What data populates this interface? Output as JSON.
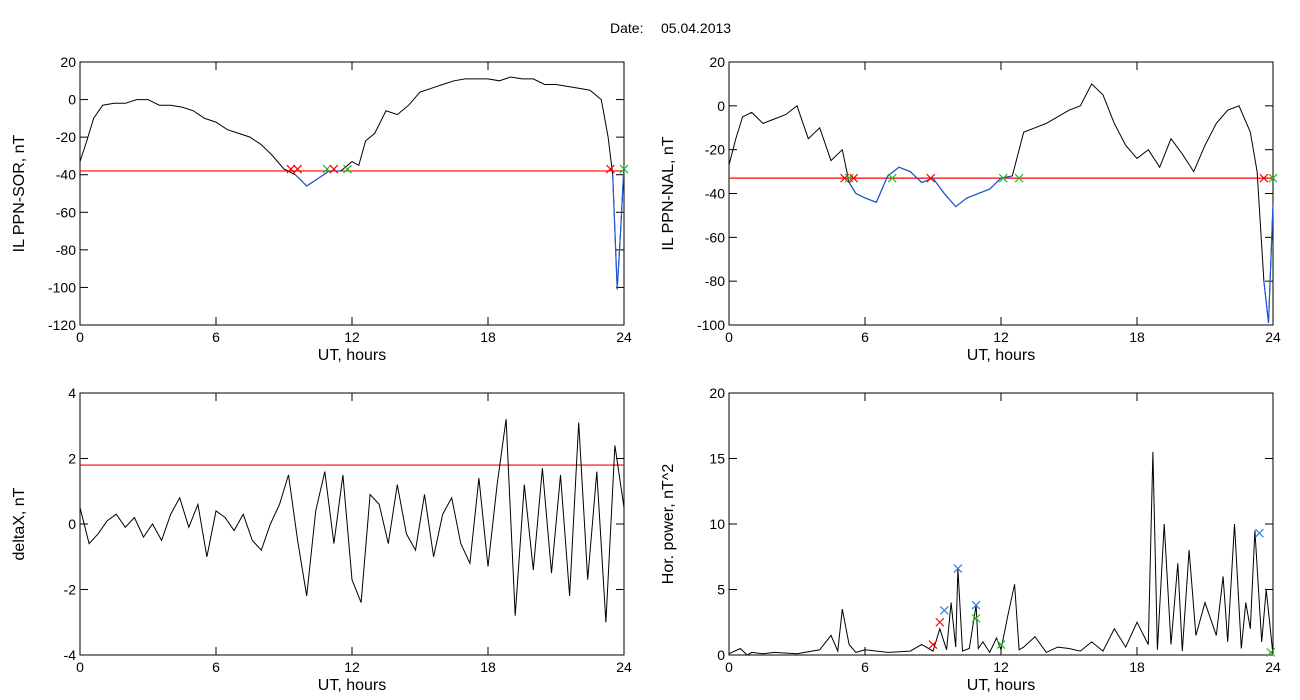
{
  "header": {
    "date_label": "Date:",
    "date_value": "05.04.2013"
  },
  "colors": {
    "threshold": "#ff0000",
    "event": "#1f5bd8",
    "curve": "#000000",
    "start_marker": "#ff0000",
    "end_marker": "#22bb22",
    "peak_marker": "#3a7bd5"
  },
  "chart_data": [
    {
      "type": "line",
      "title": "",
      "xlabel": "UT, hours",
      "ylabel": "IL PPN-SOR, nT",
      "xlim": [
        0,
        24
      ],
      "ylim": [
        -120,
        20
      ],
      "xticks": [
        "0",
        "6",
        "12",
        "18",
        "24"
      ],
      "yticks": [
        "20",
        "0",
        "-20",
        "-40",
        "-60",
        "-80",
        "-100",
        "-120"
      ],
      "threshold": -38,
      "series": [
        {
          "values_x": [
            0,
            0.3,
            0.6,
            1,
            1.5,
            2,
            2.5,
            3,
            3.5,
            4,
            4.5,
            5,
            5.5,
            6,
            6.5,
            7,
            7.5,
            8,
            8.5,
            9,
            9.5,
            10,
            10.5,
            11,
            11.5,
            12,
            12.3,
            12.6,
            13,
            13.5,
            14,
            14.5,
            15,
            15.5,
            16,
            16.5,
            17,
            17.5,
            18,
            18.5,
            19,
            19.5,
            20,
            20.5,
            21,
            21.5,
            22,
            22.5,
            23,
            23.3,
            23.5,
            23.7,
            23.85,
            24
          ],
          "values_y": [
            -33,
            -22,
            -10,
            -3,
            -2,
            -2,
            0,
            0,
            -3,
            -3,
            -4,
            -6,
            -10,
            -12,
            -16,
            -18,
            -20,
            -24,
            -30,
            -37,
            -40,
            -46,
            -42,
            -38,
            -38,
            -33,
            -35,
            -22,
            -18,
            -6,
            -8,
            -3,
            4,
            6,
            8,
            10,
            11,
            11,
            11,
            10,
            12,
            11,
            11,
            8,
            8,
            7,
            6,
            5,
            0,
            -20,
            -40,
            -101,
            -70,
            -35
          ]
        }
      ],
      "markers": [
        {
          "x": 9.3,
          "y": -37,
          "kind": "start"
        },
        {
          "x": 9.6,
          "y": -37,
          "kind": "start"
        },
        {
          "x": 10.9,
          "y": -37,
          "kind": "end"
        },
        {
          "x": 11.2,
          "y": -37,
          "kind": "start"
        },
        {
          "x": 11.8,
          "y": -37,
          "kind": "end"
        },
        {
          "x": 23.4,
          "y": -37,
          "kind": "start"
        },
        {
          "x": 24,
          "y": -37,
          "kind": "end"
        }
      ],
      "event_spans": [
        [
          9.3,
          11.8
        ],
        [
          23.4,
          24
        ]
      ]
    },
    {
      "type": "line",
      "title": "",
      "xlabel": "UT, hours",
      "ylabel": "IL PPN-NAL, nT",
      "xlim": [
        0,
        24
      ],
      "ylim": [
        -100,
        20
      ],
      "xticks": [
        "0",
        "6",
        "12",
        "18",
        "24"
      ],
      "yticks": [
        "20",
        "0",
        "-20",
        "-40",
        "-60",
        "-80",
        "-100"
      ],
      "threshold": -33,
      "series": [
        {
          "values_x": [
            0,
            0.3,
            0.6,
            1,
            1.5,
            2,
            2.5,
            3,
            3.5,
            4,
            4.5,
            5,
            5.3,
            5.6,
            6,
            6.5,
            7,
            7.5,
            8,
            8.5,
            9,
            9.5,
            10,
            10.5,
            11,
            11.5,
            12,
            12.5,
            13,
            13.5,
            14,
            14.5,
            15,
            15.5,
            16,
            16.5,
            17,
            17.5,
            18,
            18.5,
            19,
            19.5,
            20,
            20.5,
            21,
            21.5,
            22,
            22.5,
            23,
            23.3,
            23.6,
            23.8,
            24
          ],
          "values_y": [
            -27,
            -15,
            -5,
            -3,
            -8,
            -6,
            -4,
            0,
            -15,
            -10,
            -25,
            -20,
            -35,
            -40,
            -42,
            -44,
            -32,
            -28,
            -30,
            -35,
            -33,
            -40,
            -46,
            -42,
            -40,
            -38,
            -33,
            -32,
            -12,
            -10,
            -8,
            -5,
            -2,
            0,
            10,
            5,
            -8,
            -18,
            -24,
            -20,
            -28,
            -15,
            -22,
            -30,
            -18,
            -8,
            -2,
            0,
            -12,
            -30,
            -80,
            -99,
            -45
          ]
        }
      ],
      "markers": [
        {
          "x": 5.1,
          "y": -33,
          "kind": "start"
        },
        {
          "x": 5.3,
          "y": -33,
          "kind": "end"
        },
        {
          "x": 5.5,
          "y": -33,
          "kind": "start"
        },
        {
          "x": 7.2,
          "y": -33,
          "kind": "end"
        },
        {
          "x": 8.9,
          "y": -33,
          "kind": "start"
        },
        {
          "x": 12.1,
          "y": -33,
          "kind": "end"
        },
        {
          "x": 12.8,
          "y": -33,
          "kind": "end"
        },
        {
          "x": 23.6,
          "y": -33,
          "kind": "start"
        },
        {
          "x": 24,
          "y": -33,
          "kind": "end"
        }
      ],
      "event_spans": [
        [
          5.1,
          12.8
        ],
        [
          23.6,
          24
        ]
      ]
    },
    {
      "type": "line",
      "title": "",
      "xlabel": "UT, hours",
      "ylabel": "deltaX, nT",
      "xlim": [
        0,
        24
      ],
      "ylim": [
        -4,
        4
      ],
      "xticks": [
        "0",
        "6",
        "12",
        "18",
        "24"
      ],
      "yticks": [
        "4",
        "2",
        "0",
        "-2",
        "-4"
      ],
      "threshold": 1.8,
      "series": [
        {
          "values_x": [
            0,
            0.4,
            0.8,
            1.2,
            1.6,
            2,
            2.4,
            2.8,
            3.2,
            3.6,
            4,
            4.4,
            4.8,
            5.2,
            5.6,
            6,
            6.4,
            6.8,
            7.2,
            7.6,
            8,
            8.4,
            8.8,
            9.2,
            9.6,
            10,
            10.4,
            10.8,
            11.2,
            11.6,
            12,
            12.4,
            12.8,
            13.2,
            13.6,
            14,
            14.4,
            14.8,
            15.2,
            15.6,
            16,
            16.4,
            16.8,
            17.2,
            17.6,
            18,
            18.4,
            18.8,
            19.2,
            19.6,
            20,
            20.4,
            20.8,
            21.2,
            21.6,
            22,
            22.4,
            22.8,
            23.2,
            23.6,
            24
          ],
          "values_y": [
            0.5,
            -0.6,
            -0.3,
            0.1,
            0.3,
            -0.1,
            0.2,
            -0.4,
            0,
            -0.5,
            0.3,
            0.8,
            -0.1,
            0.6,
            -1,
            0.4,
            0.2,
            -0.2,
            0.3,
            -0.5,
            -0.8,
            0,
            0.6,
            1.5,
            -0.5,
            -2.2,
            0.4,
            1.6,
            -0.6,
            1.5,
            -1.7,
            -2.4,
            0.9,
            0.6,
            -0.6,
            1.2,
            -0.3,
            -0.8,
            0.9,
            -1,
            0.3,
            0.8,
            -0.6,
            -1.2,
            1.4,
            -1.3,
            1.2,
            3.2,
            -2.8,
            1.2,
            -1.4,
            1.7,
            -1.5,
            1.5,
            -2.2,
            3.1,
            -1.7,
            1.6,
            -3,
            2.4,
            0.5
          ]
        }
      ],
      "markers": [],
      "event_spans": []
    },
    {
      "type": "line",
      "title": "",
      "xlabel": "UT, hours",
      "ylabel": "Hor. power, nT^2",
      "xlim": [
        0,
        24
      ],
      "ylim": [
        0,
        20
      ],
      "xticks": [
        "0",
        "6",
        "12",
        "18",
        "24"
      ],
      "yticks": [
        "20",
        "15",
        "10",
        "5",
        "0"
      ],
      "threshold": null,
      "series": [
        {
          "values_x": [
            0,
            0.5,
            0.8,
            1,
            1.5,
            2,
            3,
            4,
            4.5,
            4.8,
            5,
            5.3,
            5.6,
            6,
            7,
            8,
            8.5,
            9,
            9.3,
            9.6,
            9.8,
            10,
            10.1,
            10.3,
            10.6,
            10.9,
            11,
            11.2,
            11.5,
            11.8,
            12,
            12.3,
            12.6,
            12.8,
            13,
            13.5,
            14,
            14.5,
            15,
            15.5,
            16,
            16.5,
            17,
            17.5,
            18,
            18.5,
            18.7,
            18.9,
            19.2,
            19.5,
            19.8,
            20,
            20.3,
            20.6,
            21,
            21.5,
            21.8,
            22,
            22.3,
            22.6,
            22.8,
            23,
            23.2,
            23.5,
            23.7,
            24
          ],
          "values_y": [
            0.1,
            0.5,
            0,
            0.2,
            0.1,
            0.2,
            0.1,
            0.4,
            1.5,
            0.3,
            3.5,
            0.8,
            0.2,
            0.4,
            0.2,
            0.3,
            0.8,
            0.3,
            2,
            0.4,
            4,
            0.6,
            6.6,
            0.3,
            0.5,
            3.8,
            0.5,
            1,
            0.2,
            1.3,
            0.4,
            3,
            5.4,
            0.4,
            0.6,
            1.4,
            0.2,
            0.6,
            0.5,
            0.3,
            1,
            0.3,
            2,
            0.6,
            2.5,
            0.8,
            15.5,
            0.4,
            10,
            0.8,
            7,
            0.3,
            8,
            1.5,
            4,
            1.5,
            6,
            1,
            10,
            0.5,
            4,
            2,
            9.5,
            1,
            5,
            0
          ]
        }
      ],
      "markers": [
        {
          "x": 9,
          "y": 0.8,
          "kind": "start"
        },
        {
          "x": 9.3,
          "y": 2.5,
          "kind": "start"
        },
        {
          "x": 9.5,
          "y": 3.4,
          "kind": "peak"
        },
        {
          "x": 10.1,
          "y": 6.6,
          "kind": "peak"
        },
        {
          "x": 10.9,
          "y": 3.8,
          "kind": "peak"
        },
        {
          "x": 10.9,
          "y": 2.8,
          "kind": "end"
        },
        {
          "x": 12.0,
          "y": 0.8,
          "kind": "end"
        },
        {
          "x": 23.4,
          "y": 9.3,
          "kind": "peak"
        },
        {
          "x": 23.9,
          "y": 0.2,
          "kind": "end"
        }
      ],
      "event_spans": []
    }
  ]
}
